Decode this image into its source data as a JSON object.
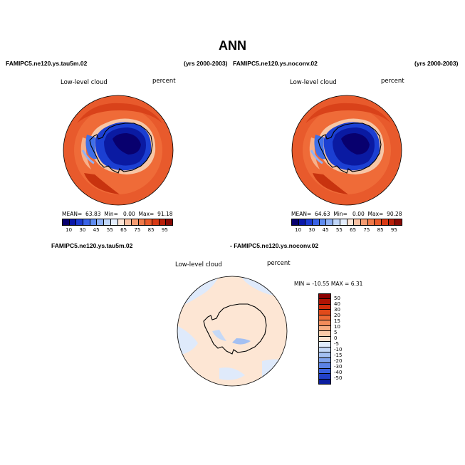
{
  "figure": {
    "title": "ANN",
    "panel_left": {
      "case": "FAMIPC5.ne120.ys.tau5m.02",
      "years": "(yrs 2000-2003)",
      "variable": "Low-level cloud",
      "units": "percent",
      "mean_label": "MEAN=",
      "mean": "63.83",
      "min_label": "Min=",
      "min": "0.00",
      "max_label": "Max=",
      "max": "91.18"
    },
    "panel_right": {
      "case": "FAMIPC5.ne120.ys.noconv.02",
      "years": "(yrs 2000-2003)",
      "variable": "Low-level cloud",
      "units": "percent",
      "mean_label": "MEAN=",
      "mean": "64.63",
      "min_label": "Min=",
      "min": "0.00",
      "max_label": "Max=",
      "max": "90.28"
    },
    "panel_diff": {
      "case_a": "FAMIPC5.ne120.ys.tau5m.02",
      "case_b": "- FAMIPC5.ne120.ys.noconv.02",
      "variable": "Low-level cloud",
      "units": "percent",
      "minmax": "MIN = -10.55 MAX =   6.31"
    },
    "colorbar_abs": {
      "colors": [
        "#08006e",
        "#0a17a8",
        "#1c3ad1",
        "#3a63e6",
        "#5f8cf0",
        "#8fb1f5",
        "#c0d6fa",
        "#e4eefd",
        "#fde5d6",
        "#f9c0a2",
        "#f59c72",
        "#f07a4a",
        "#e95a2a",
        "#d83a15",
        "#b8200a",
        "#8a0a04"
      ],
      "labels": [
        "10",
        "30",
        "45",
        "55",
        "65",
        "75",
        "85",
        "95"
      ]
    },
    "colorbar_abs_right_labels": [
      "10",
      "30",
      "45",
      "55",
      "65",
      "75",
      "85",
      "95"
    ],
    "colorbar_diff": {
      "colors": [
        "#8a0000",
        "#b01404",
        "#cf2d0b",
        "#e04a1a",
        "#ec6a36",
        "#f28c5a",
        "#f6ad82",
        "#f9c9a8",
        "#fce2cf",
        "#e0ecfb",
        "#c5d9f7",
        "#a4c0f2",
        "#7fa2ec",
        "#5b82e5",
        "#3a60de",
        "#2240c8",
        "#0b1ea0"
      ],
      "labels": [
        "50",
        "40",
        "30",
        "20",
        "15",
        "10",
        "5",
        "0",
        "-5",
        "-10",
        "-15",
        "-20",
        "-30",
        "-40",
        "-50"
      ]
    }
  }
}
